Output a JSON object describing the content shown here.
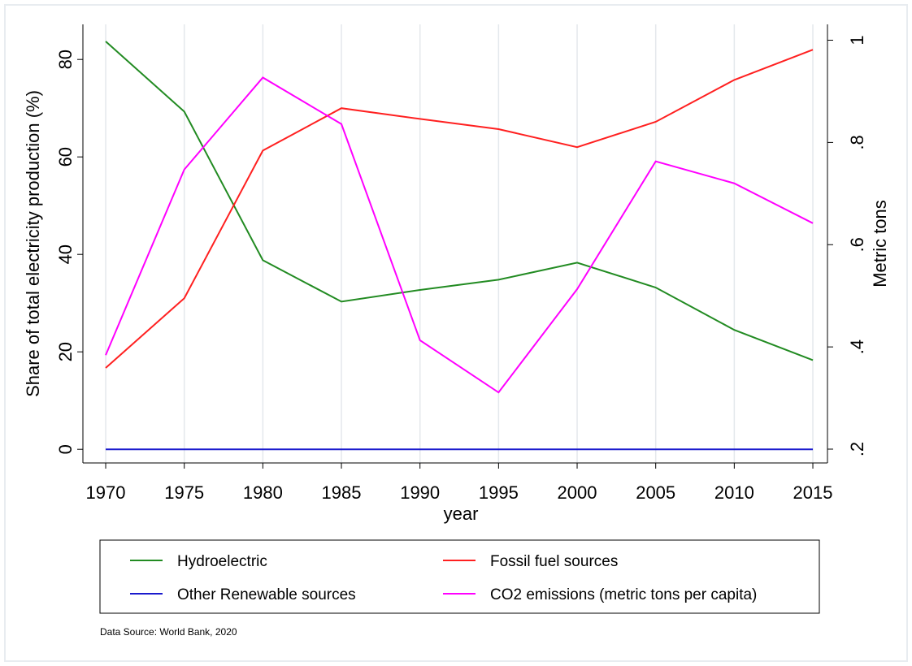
{
  "chart_data": {
    "type": "line",
    "x_label": "year",
    "y_label": "Share of total electricity production (%)",
    "y2_label": "Metric tons",
    "x": [
      1970,
      1975,
      1980,
      1985,
      1990,
      1995,
      2000,
      2005,
      2010,
      2015
    ],
    "xlim": [
      1968.55,
      2015.93
    ],
    "xticks": [
      1970,
      1975,
      1980,
      1985,
      1990,
      1995,
      2000,
      2005,
      2010,
      2015
    ],
    "ylim": [
      -2.8,
      87.2
    ],
    "yticks": [
      0,
      20,
      40,
      60,
      80
    ],
    "y2lim": [
      0.173,
      1.031
    ],
    "y2ticks": [
      {
        "value": 0.2,
        "label": ".2"
      },
      {
        "value": 0.4,
        "label": ".4"
      },
      {
        "value": 0.6,
        "label": ".6"
      },
      {
        "value": 0.8,
        "label": ".8"
      },
      1
    ],
    "grid": "x",
    "series": [
      {
        "name": "Hydroelectric",
        "color": "#228b22",
        "values": [
          83.7,
          69.3,
          38.8,
          30.3,
          32.7,
          34.8,
          38.3,
          33.2,
          24.5,
          18.3
        ]
      },
      {
        "name": "Fossil fuel sources",
        "color": "#ff2020",
        "values": [
          16.7,
          31,
          61.3,
          70,
          67.8,
          65.7,
          62,
          67.2,
          75.8,
          82
        ]
      },
      {
        "name": "Other Renewable sources",
        "color": "#1a1acd",
        "values": [
          0,
          0,
          0,
          0,
          0,
          0,
          0,
          0,
          0,
          0
        ]
      },
      {
        "name": "CO2 emissions (metric tons per capita)",
        "color": "#ff00ff",
        "axis": "y2",
        "values": [
          0.384,
          0.747,
          0.927,
          0.836,
          0.413,
          0.311,
          0.513,
          0.763,
          0.72,
          0.642
        ]
      }
    ],
    "note": "Data Source: World Bank, 2020"
  }
}
